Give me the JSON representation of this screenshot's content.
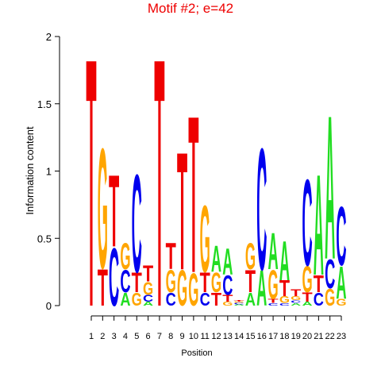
{
  "chart_data": {
    "type": "logo",
    "title": "Motif #2; e=42",
    "x_label": "Position",
    "y_label": "Information content",
    "categories": [
      "1",
      "2",
      "3",
      "4",
      "5",
      "6",
      "7",
      "8",
      "9",
      "10",
      "11",
      "12",
      "13",
      "14",
      "15",
      "16",
      "17",
      "18",
      "19",
      "20",
      "21",
      "22",
      "23"
    ],
    "series": [
      {
        "name": "A",
        "color": "#22dd22",
        "values": [
          0,
          0,
          0,
          0.1,
          0,
          0.03,
          0,
          0,
          0,
          0,
          0,
          0.2,
          0.2,
          0.01,
          0.1,
          0.27,
          0.28,
          0.3,
          0.02,
          0.03,
          0.77,
          1.1,
          0.25
        ]
      },
      {
        "name": "C",
        "color": "#0000ee",
        "values": [
          0,
          0,
          0.44,
          0.17,
          0.75,
          0.05,
          0,
          0.1,
          0,
          0,
          0.1,
          0,
          0.15,
          0.01,
          0,
          0.93,
          0.02,
          0.02,
          0.02,
          0.66,
          0.1,
          0.22,
          0.45
        ]
      },
      {
        "name": "G",
        "color": "#ffa500",
        "values": [
          0,
          0.92,
          0,
          0.2,
          0.1,
          0.1,
          0,
          0.17,
          0.27,
          0.25,
          0.51,
          0.15,
          0.03,
          0.01,
          0.2,
          0,
          0.22,
          0.05,
          0.03,
          0.2,
          0,
          0.13,
          0.05
        ]
      },
      {
        "name": "T",
        "color": "#ee0000",
        "values": [
          1.9,
          0.28,
          0.55,
          0,
          0.15,
          0.12,
          1.9,
          0.2,
          0.9,
          1.2,
          0.15,
          0.1,
          0.05,
          0.01,
          0.17,
          0,
          0.03,
          0.12,
          0.05,
          0.07,
          0.13,
          0,
          0
        ]
      }
    ],
    "ylim": [
      0,
      2
    ],
    "yticks": [
      0,
      0.5,
      1,
      1.5,
      2
    ]
  }
}
